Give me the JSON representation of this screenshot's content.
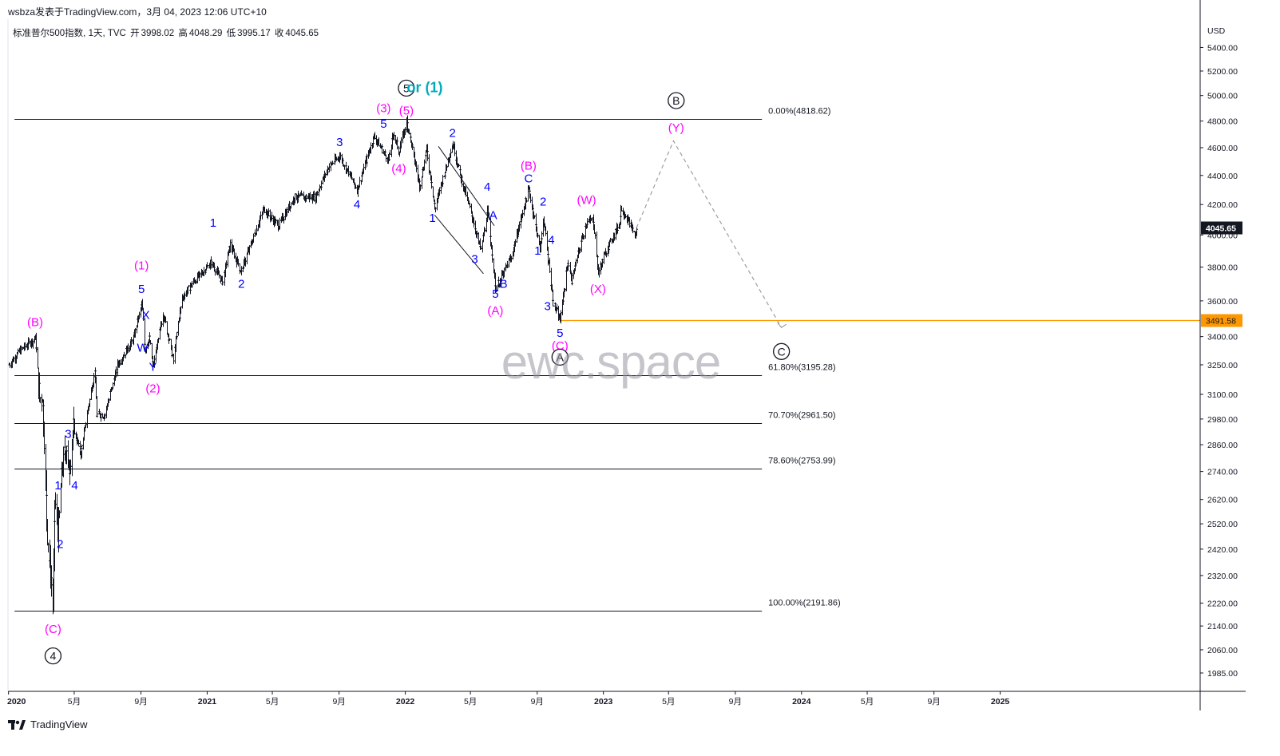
{
  "header": {
    "publisher_line": "wsbza发表于TradingView.com，3月 04, 2023 12:06 UTC+10",
    "symbol_line": "标准普尔500指数, 1天, TVC",
    "ohlc": [
      {
        "label": "开",
        "value": "3998.02"
      },
      {
        "label": "高",
        "value": "4048.29"
      },
      {
        "label": "低",
        "value": "3995.17"
      },
      {
        "label": "收",
        "value": "4045.65"
      }
    ]
  },
  "watermark": "ewc.space",
  "footer": {
    "brand": "TradingView",
    "logo_icon": "tradingview-logo-icon"
  },
  "colors": {
    "candle": "#131722",
    "label_blue": "#0000ff",
    "label_magenta": "#ff00ff",
    "label_cyan": "#00aabb",
    "level_orange": "#ff9800",
    "projection_gray": "#9e9e9e",
    "price_tag_dark": "#131722"
  },
  "chart_data": {
    "type": "line",
    "title": "标准普尔500指数, 1天, TVC",
    "currency": "USD",
    "scale": "log",
    "ylim": [
      1930,
      5650
    ],
    "x_range": [
      "2019-12-31",
      "2025-12-31"
    ],
    "x_ticks": [
      "2020",
      "5月",
      "9月",
      "2021",
      "5月",
      "9月",
      "2022",
      "5月",
      "9月",
      "2023",
      "5月",
      "9月",
      "2024",
      "5月",
      "9月",
      "2025"
    ],
    "x_tick_dates": [
      "2020-01-01",
      "2020-05-01",
      "2020-09-01",
      "2021-01-01",
      "2021-05-01",
      "2021-09-01",
      "2022-01-01",
      "2022-05-01",
      "2022-09-01",
      "2023-01-01",
      "2023-05-01",
      "2023-09-01",
      "2024-01-01",
      "2024-05-01",
      "2024-09-01",
      "2025-01-01"
    ],
    "y_ticks": [
      "5400.00",
      "5200.00",
      "5000.00",
      "4800.00",
      "4600.00",
      "4400.00",
      "4200.00",
      "4000.00",
      "3800.00",
      "3600.00",
      "3400.00",
      "3250.00",
      "3100.00",
      "2980.00",
      "2860.00",
      "2740.00",
      "2620.00",
      "2520.00",
      "2420.00",
      "2320.00",
      "2220.00",
      "2140.00",
      "2060.00",
      "1985.00"
    ],
    "series": [
      {
        "name": "标准普尔500指数",
        "points": [
          [
            "2020-01-02",
            3250
          ],
          [
            "2020-01-20",
            3320
          ],
          [
            "2020-02-19",
            3390
          ],
          [
            "2020-02-27",
            3080
          ],
          [
            "2020-03-03",
            3100
          ],
          [
            "2020-03-12",
            2480
          ],
          [
            "2020-03-16",
            2380
          ],
          [
            "2020-03-23",
            2220
          ],
          [
            "2020-03-26",
            2620
          ],
          [
            "2020-04-01",
            2470
          ],
          [
            "2020-04-08",
            2750
          ],
          [
            "2020-04-17",
            2870
          ],
          [
            "2020-04-21",
            2730
          ],
          [
            "2020-04-29",
            2940
          ],
          [
            "2020-05-13",
            2820
          ],
          [
            "2020-06-08",
            3230
          ],
          [
            "2020-06-11",
            3000
          ],
          [
            "2020-06-26",
            3000
          ],
          [
            "2020-07-20",
            3250
          ],
          [
            "2020-08-18",
            3390
          ],
          [
            "2020-09-02",
            3580
          ],
          [
            "2020-09-08",
            3330
          ],
          [
            "2020-09-16",
            3390
          ],
          [
            "2020-09-23",
            3240
          ],
          [
            "2020-10-12",
            3530
          ],
          [
            "2020-10-30",
            3270
          ],
          [
            "2020-11-16",
            3620
          ],
          [
            "2020-12-04",
            3700
          ],
          [
            "2021-01-08",
            3830
          ],
          [
            "2021-01-29",
            3710
          ],
          [
            "2021-02-12",
            3940
          ],
          [
            "2021-03-04",
            3770
          ],
          [
            "2021-04-15",
            4170
          ],
          [
            "2021-05-12",
            4060
          ],
          [
            "2021-06-11",
            4250
          ],
          [
            "2021-07-19",
            4250
          ],
          [
            "2021-08-12",
            4460
          ],
          [
            "2021-09-02",
            4540
          ],
          [
            "2021-10-04",
            4300
          ],
          [
            "2021-11-04",
            4680
          ],
          [
            "2021-12-01",
            4510
          ],
          [
            "2021-12-10",
            4710
          ],
          [
            "2021-12-20",
            4570
          ],
          [
            "2022-01-03",
            4800
          ],
          [
            "2022-01-27",
            4330
          ],
          [
            "2022-02-09",
            4590
          ],
          [
            "2022-02-24",
            4170
          ],
          [
            "2022-03-29",
            4630
          ],
          [
            "2022-04-12",
            4400
          ],
          [
            "2022-05-20",
            3900
          ],
          [
            "2022-06-01",
            4150
          ],
          [
            "2022-06-16",
            3670
          ],
          [
            "2022-07-15",
            3860
          ],
          [
            "2022-08-16",
            4300
          ],
          [
            "2022-09-06",
            3910
          ],
          [
            "2022-09-12",
            4110
          ],
          [
            "2022-09-30",
            3590
          ],
          [
            "2022-10-13",
            3490
          ],
          [
            "2022-10-27",
            3830
          ],
          [
            "2022-11-03",
            3720
          ],
          [
            "2022-11-30",
            4080
          ],
          [
            "2022-12-13",
            4100
          ],
          [
            "2022-12-22",
            3770
          ],
          [
            "2023-01-06",
            3900
          ],
          [
            "2023-01-31",
            4080
          ],
          [
            "2023-02-02",
            4180
          ],
          [
            "2023-02-17",
            4080
          ],
          [
            "2023-03-02",
            3990
          ],
          [
            "2023-03-03",
            4045.65
          ]
        ]
      },
      {
        "name": "projection",
        "points": [
          [
            "2023-03-03",
            4045.65
          ],
          [
            "2023-05-10",
            4650
          ],
          [
            "2023-11-25",
            3450
          ]
        ]
      }
    ],
    "horizontal_levels": [
      {
        "label": "0.00%(4818.62)",
        "value": 4818.62
      },
      {
        "label": "61.80%(3195.28)",
        "value": 3195.28
      },
      {
        "label": "70.70%(2961.50)",
        "value": 2961.5
      },
      {
        "label": "78.60%(2753.99)",
        "value": 2753.99
      },
      {
        "label": "100.00%(2191.86)",
        "value": 2191.86
      }
    ],
    "level_range": [
      "2020-01-12",
      "2023-10-20"
    ],
    "orange_level": {
      "value": 3491.58,
      "label": "3491.58",
      "from": "2022-10-13"
    },
    "last_price_tag": "4045.65",
    "channel_lines": [
      {
        "from": [
          "2022-03-03",
          4610
        ],
        "to": [
          "2022-06-14",
          4060
        ]
      },
      {
        "from": [
          "2022-02-24",
          4130
        ],
        "to": [
          "2022-05-25",
          3760
        ]
      }
    ],
    "wave_labels": [
      {
        "text": "(B)",
        "date": "2020-02-19",
        "price": 3480,
        "color": "magenta"
      },
      {
        "text": "(C)",
        "date": "2020-03-23",
        "price": 2130,
        "color": "magenta"
      },
      {
        "text": "4",
        "date": "2020-03-23",
        "price": 2040,
        "color": "black",
        "circled": true
      },
      {
        "text": "1",
        "date": "2020-04-01",
        "price": 2680,
        "color": "blue"
      },
      {
        "text": "2",
        "date": "2020-04-05",
        "price": 2440,
        "color": "blue"
      },
      {
        "text": "3",
        "date": "2020-04-20",
        "price": 2910,
        "color": "blue"
      },
      {
        "text": "4",
        "date": "2020-05-02",
        "price": 2680,
        "color": "blue"
      },
      {
        "text": "(1)",
        "date": "2020-09-02",
        "price": 3810,
        "color": "magenta"
      },
      {
        "text": "5",
        "date": "2020-09-02",
        "price": 3670,
        "color": "blue"
      },
      {
        "text": "X",
        "date": "2020-09-10",
        "price": 3520,
        "color": "blue"
      },
      {
        "text": "W",
        "date": "2020-09-04",
        "price": 3340,
        "color": "blue"
      },
      {
        "text": "Y",
        "date": "2020-09-23",
        "price": 3240,
        "color": "blue"
      },
      {
        "text": "(2)",
        "date": "2020-09-23",
        "price": 3130,
        "color": "magenta"
      },
      {
        "text": "1",
        "date": "2021-01-12",
        "price": 4080,
        "color": "blue"
      },
      {
        "text": "2",
        "date": "2021-03-05",
        "price": 3700,
        "color": "blue"
      },
      {
        "text": "3",
        "date": "2021-09-02",
        "price": 4640,
        "color": "blue"
      },
      {
        "text": "4",
        "date": "2021-10-04",
        "price": 4200,
        "color": "blue"
      },
      {
        "text": "(3)",
        "date": "2021-11-22",
        "price": 4900,
        "color": "magenta"
      },
      {
        "text": "5",
        "date": "2021-11-22",
        "price": 4780,
        "color": "blue"
      },
      {
        "text": "(4)",
        "date": "2021-12-20",
        "price": 4450,
        "color": "magenta"
      },
      {
        "text": "(5)",
        "date": "2022-01-03",
        "price": 4880,
        "color": "magenta"
      },
      {
        "text": "5",
        "date": "2022-01-03",
        "price": 5060,
        "color": "black",
        "circled": true
      },
      {
        "text": "or (1)",
        "date": "2022-02-06",
        "price": 5060,
        "color": "cyan"
      },
      {
        "text": "1",
        "date": "2022-02-20",
        "price": 4110,
        "color": "blue"
      },
      {
        "text": "2",
        "date": "2022-03-29",
        "price": 4710,
        "color": "blue"
      },
      {
        "text": "3",
        "date": "2022-05-09",
        "price": 3850,
        "color": "blue"
      },
      {
        "text": "4",
        "date": "2022-06-01",
        "price": 4320,
        "color": "blue"
      },
      {
        "text": "A",
        "date": "2022-06-12",
        "price": 4130,
        "color": "blue"
      },
      {
        "text": "5",
        "date": "2022-06-16",
        "price": 3640,
        "color": "blue"
      },
      {
        "text": "(A)",
        "date": "2022-06-16",
        "price": 3545,
        "color": "magenta"
      },
      {
        "text": "B",
        "date": "2022-07-01",
        "price": 3700,
        "color": "blue"
      },
      {
        "text": "(B)",
        "date": "2022-08-16",
        "price": 4470,
        "color": "magenta"
      },
      {
        "text": "C",
        "date": "2022-08-16",
        "price": 4380,
        "color": "blue"
      },
      {
        "text": "2",
        "date": "2022-09-12",
        "price": 4220,
        "color": "blue"
      },
      {
        "text": "1",
        "date": "2022-09-02",
        "price": 3900,
        "color": "blue"
      },
      {
        "text": "4",
        "date": "2022-09-27",
        "price": 3970,
        "color": "blue"
      },
      {
        "text": "3",
        "date": "2022-09-20",
        "price": 3570,
        "color": "blue"
      },
      {
        "text": "5",
        "date": "2022-10-13",
        "price": 3420,
        "color": "blue"
      },
      {
        "text": "(C)",
        "date": "2022-10-13",
        "price": 3350,
        "color": "magenta"
      },
      {
        "text": "A",
        "date": "2022-10-13",
        "price": 3290,
        "color": "black",
        "circled": true
      },
      {
        "text": "(W)",
        "date": "2022-12-01",
        "price": 4230,
        "color": "magenta"
      },
      {
        "text": "(X)",
        "date": "2022-12-22",
        "price": 3670,
        "color": "magenta"
      },
      {
        "text": "B",
        "date": "2023-05-15",
        "price": 4960,
        "color": "black",
        "circled": true
      },
      {
        "text": "(Y)",
        "date": "2023-05-15",
        "price": 4750,
        "color": "magenta"
      },
      {
        "text": "C",
        "date": "2023-11-25",
        "price": 3320,
        "color": "black",
        "circled": true
      }
    ]
  }
}
